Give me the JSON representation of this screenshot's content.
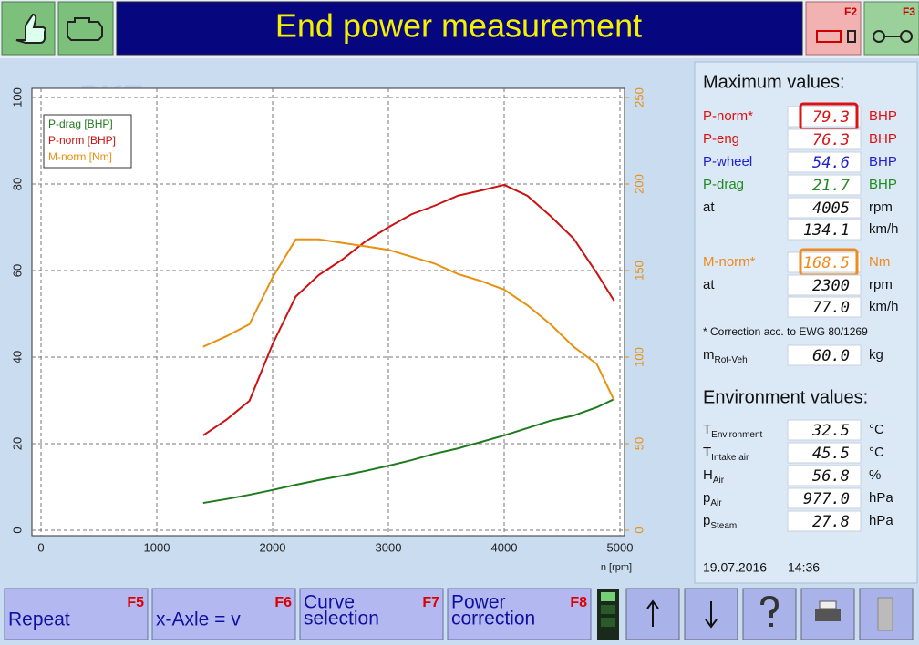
{
  "header": {
    "title": "End power measurement",
    "keys": [
      "F2",
      "F3"
    ]
  },
  "logo": "PKE",
  "chart_data": {
    "type": "line",
    "x": [
      1400,
      1600,
      1800,
      2000,
      2200,
      2400,
      2600,
      2800,
      3000,
      3200,
      3400,
      3600,
      3800,
      4000,
      4200,
      4400,
      4600,
      4800,
      4950
    ],
    "series": [
      {
        "name": "P-drag [BHP]",
        "color": "#1f7a1f",
        "values": [
          6.3,
          7.2,
          8.2,
          9.3,
          10.5,
          11.6,
          12.6,
          13.7,
          14.9,
          16.2,
          17.7,
          18.9,
          20.4,
          21.9,
          23.6,
          25.3,
          26.5,
          28.4,
          30.3
        ]
      },
      {
        "name": "P-norm [BHP]",
        "color": "#cc1111",
        "values": [
          21.9,
          25.5,
          29.9,
          43,
          54,
          59,
          62.5,
          66.7,
          70,
          73,
          75,
          77.3,
          78.5,
          79.8,
          77.3,
          72.6,
          67.4,
          59.4,
          53
        ]
      },
      {
        "name": "M-norm [Nm]",
        "color": "#e8900f",
        "axis": "y2",
        "values": [
          106,
          112,
          119,
          146,
          168,
          168,
          166,
          164,
          162,
          158,
          154,
          148,
          144,
          139,
          130,
          119,
          106,
          96,
          75
        ]
      }
    ],
    "xlabel": "n [rpm]",
    "xlim": [
      0,
      5000
    ],
    "xticks": [
      0,
      1000,
      2000,
      3000,
      4000,
      5000
    ],
    "ylim": [
      0,
      100
    ],
    "yticks": [
      0,
      20,
      40,
      60,
      80,
      100
    ],
    "y2lim": [
      0,
      250
    ],
    "y2ticks": [
      0,
      50,
      100,
      150,
      200,
      250
    ],
    "grid": true,
    "legend": "upper left"
  },
  "max_values": {
    "title": "Maximum values:",
    "rows": [
      {
        "label": "P-norm*",
        "value": "79.3",
        "unit": "BHP",
        "color": "#dd1111",
        "highlight": "#dd1111"
      },
      {
        "label": "P-eng",
        "value": "76.3",
        "unit": "BHP",
        "color": "#dd1111"
      },
      {
        "label": "P-wheel",
        "value": "54.6",
        "unit": "BHP",
        "color": "#2222cc"
      },
      {
        "label": "P-drag",
        "value": "21.7",
        "unit": "BHP",
        "color": "#1f8a1f"
      },
      {
        "label": "at",
        "value": "4005",
        "unit": "rpm"
      },
      {
        "value": "134.1",
        "unit": "km/h"
      },
      {
        "label": "M-norm*",
        "value": "168.5",
        "unit": "Nm",
        "color": "#f08a1a",
        "highlight": "#f08a1a"
      },
      {
        "label": "at",
        "value": "2300",
        "unit": "rpm"
      },
      {
        "value": "77.0",
        "unit": "km/h"
      }
    ],
    "footnote": "* Correction acc. to EWG 80/1269",
    "mass": {
      "label": "m",
      "sub": "Rot-Veh",
      "value": "60.0",
      "unit": "kg"
    }
  },
  "environment": {
    "title": "Environment values:",
    "rows": [
      {
        "label": "T",
        "sub": "Environment",
        "value": "32.5",
        "unit": "°C"
      },
      {
        "label": "T",
        "sub": "Intake air",
        "value": "45.5",
        "unit": "°C"
      },
      {
        "label": "H",
        "sub": "Air",
        "value": "56.8",
        "unit": "%"
      },
      {
        "label": "p",
        "sub": "Air",
        "value": "977.0",
        "unit": "hPa"
      },
      {
        "label": "p",
        "sub": "Steam",
        "value": "27.8",
        "unit": "hPa"
      }
    ]
  },
  "date": "19.07.2016",
  "time": "14:36",
  "buttons": [
    {
      "label": [
        "Repeat"
      ],
      "key": "F5"
    },
    {
      "label": [
        "x-Axle = v"
      ],
      "key": "F6"
    },
    {
      "label": [
        "Curve",
        "selection"
      ],
      "key": "F7"
    },
    {
      "label": [
        "Power",
        "correction"
      ],
      "key": "F8"
    }
  ]
}
